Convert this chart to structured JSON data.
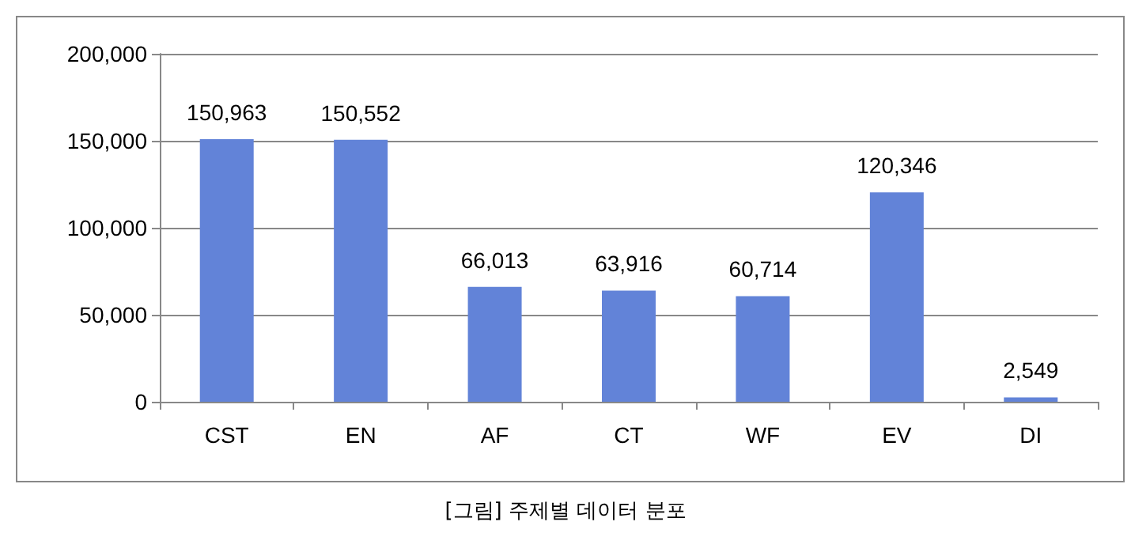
{
  "chart_data": {
    "type": "bar",
    "categories": [
      "CST",
      "EN",
      "AF",
      "CT",
      "WF",
      "EV",
      "DI"
    ],
    "values": [
      150963,
      150552,
      66013,
      63916,
      60714,
      120346,
      2549
    ],
    "color": "#6283d8",
    "value_labels": [
      "150,963",
      "150,552",
      "66,013",
      "63,916",
      "60,714",
      "120,346",
      "2,549"
    ],
    "ylim": [
      0,
      200000
    ],
    "yticks": [
      0,
      {
        "value": 50000,
        "label": "50,000"
      },
      {
        "value": 100000,
        "label": "100,000"
      },
      {
        "value": 150000,
        "label": "150,000"
      },
      {
        "value": 200000,
        "label": "200,000"
      }
    ],
    "grid": "y",
    "annotations": [
      "[그림] 주제별 데이터 분포"
    ]
  }
}
